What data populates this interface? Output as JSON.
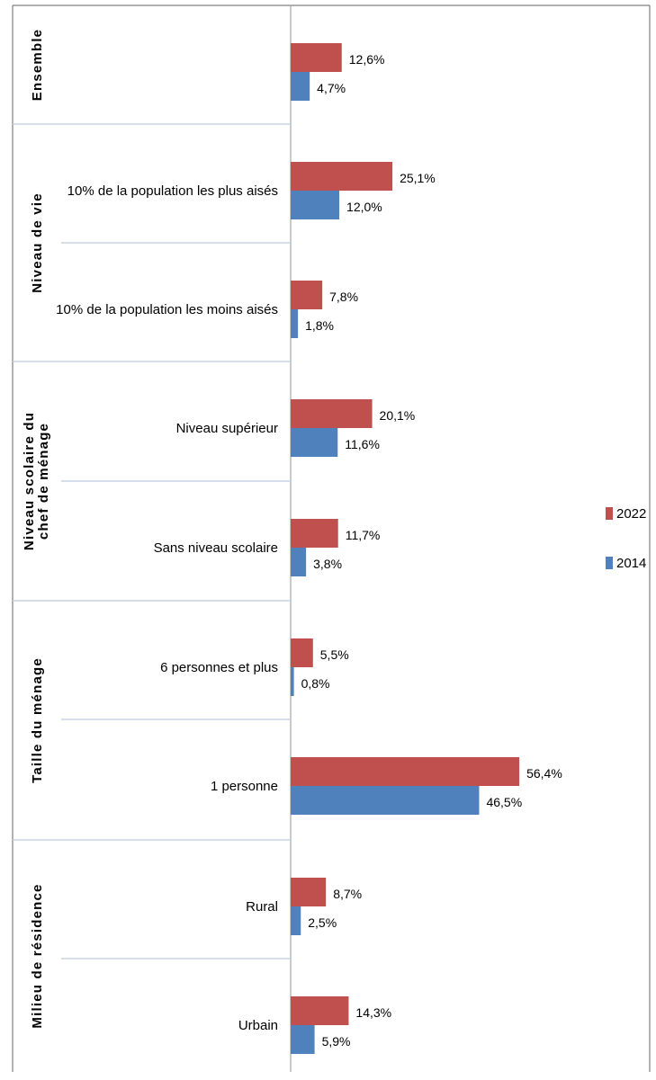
{
  "chart_data": {
    "type": "bar",
    "orientation": "horizontal",
    "unit": "%",
    "colors": {
      "2022": "#c0504d",
      "2014": "#4f81bd"
    },
    "legend": {
      "placement": "right",
      "entries": [
        "2022",
        "2014"
      ]
    },
    "groups": [
      {
        "label": "Ensemble",
        "categories": [
          {
            "label": "",
            "values": {
              "2022": 12.6,
              "2014": 4.7
            },
            "value_labels": {
              "2022": "12,6%",
              "2014": "4,7%"
            }
          }
        ]
      },
      {
        "label": "Niveau de vie",
        "categories": [
          {
            "label": "10% de la population les plus aisés",
            "values": {
              "2022": 25.1,
              "2014": 12.0
            },
            "value_labels": {
              "2022": "25,1%",
              "2014": "12,0%"
            }
          },
          {
            "label": "10% de la population les moins aisés",
            "values": {
              "2022": 7.8,
              "2014": 1.8
            },
            "value_labels": {
              "2022": "7,8%",
              "2014": "1,8%"
            }
          }
        ]
      },
      {
        "label": "Niveau scolaire du chef de ménage",
        "label_lines": [
          "Niveau scolaire du",
          "chef de ménage"
        ],
        "categories": [
          {
            "label": "Niveau supérieur",
            "values": {
              "2022": 20.1,
              "2014": 11.6
            },
            "value_labels": {
              "2022": "20,1%",
              "2014": "11,6%"
            }
          },
          {
            "label": "Sans niveau scolaire",
            "values": {
              "2022": 11.7,
              "2014": 3.8
            },
            "value_labels": {
              "2022": "11,7%",
              "2014": "3,8%"
            }
          }
        ]
      },
      {
        "label": "Taille du ménage",
        "categories": [
          {
            "label": "6 personnes et plus",
            "values": {
              "2022": 5.5,
              "2014": 0.8
            },
            "value_labels": {
              "2022": "5,5%",
              "2014": "0,8%"
            }
          },
          {
            "label": "1 personne",
            "values": {
              "2022": 56.4,
              "2014": 46.5
            },
            "value_labels": {
              "2022": "56,4%",
              "2014": "46,5%"
            }
          }
        ]
      },
      {
        "label": "Milieu de résidence",
        "categories": [
          {
            "label": "Rural",
            "values": {
              "2022": 8.7,
              "2014": 2.5
            },
            "value_labels": {
              "2022": "8,7%",
              "2014": "2,5%"
            }
          },
          {
            "label": "Urbain",
            "values": {
              "2022": 14.3,
              "2014": 5.9
            },
            "value_labels": {
              "2022": "14,3%",
              "2014": "5,9%"
            }
          }
        ]
      }
    ],
    "xlim": [
      0,
      60
    ],
    "grid": false
  }
}
